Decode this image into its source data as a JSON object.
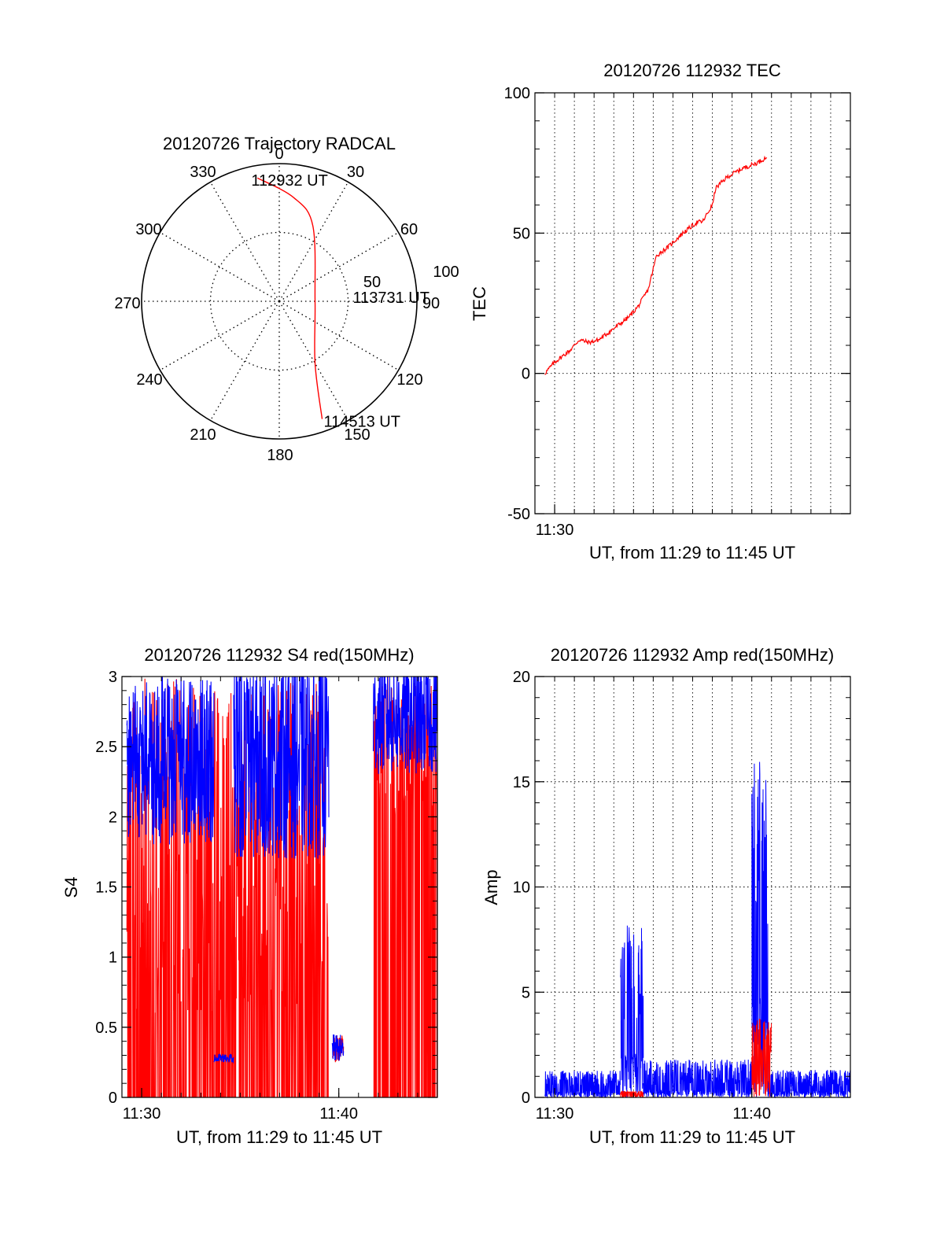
{
  "chart_data": [
    {
      "type": "polar",
      "title": "20120726 Trajectory RADCAL",
      "angle_labels": [
        "0",
        "30",
        "60",
        "90",
        "120",
        "150",
        "180",
        "210",
        "240",
        "270",
        "300",
        "330"
      ],
      "radius_labels": [
        "50",
        "100"
      ],
      "rlim": [
        0,
        100
      ],
      "grid": true,
      "series": [
        {
          "color": "#ff0000",
          "points": [
            {
              "az": 350,
              "r": 91
            },
            {
              "az": 8,
              "r": 76
            },
            {
              "az": 24,
              "r": 60
            },
            {
              "az": 90,
              "r": 26
            },
            {
              "az": 150,
              "r": 52
            },
            {
              "az": 160,
              "r": 91
            }
          ]
        }
      ],
      "annotations": [
        {
          "text": "112932 UT",
          "az": 350,
          "r": 91
        },
        {
          "text": "113731 UT",
          "az": 90,
          "r": 26
        },
        {
          "text": "114513 UT",
          "az": 160,
          "r": 91
        }
      ]
    },
    {
      "type": "line",
      "title": "20120726 112932 TEC",
      "xlabel": "UT, from 11:29 to 11:45 UT",
      "ylabel": "TEC",
      "xlim": [
        "11:29",
        "11:45"
      ],
      "x_ticks": [
        "11:30"
      ],
      "ylim": [
        -50,
        100
      ],
      "y_ticks": [
        "-50",
        "0",
        "50",
        "100"
      ],
      "grid": true,
      "series": [
        {
          "color": "#ff0000",
          "points": [
            [
              "11:29:30",
              0
            ],
            [
              "11:30:00",
              4
            ],
            [
              "11:30:45",
              8
            ],
            [
              "11:31:15",
              12
            ],
            [
              "11:31:45",
              11
            ],
            [
              "11:32:15",
              12
            ],
            [
              "11:33:00",
              16
            ],
            [
              "11:33:45",
              20
            ],
            [
              "11:34:15",
              24
            ],
            [
              "11:34:45",
              30
            ],
            [
              "11:35:10",
              42
            ],
            [
              "11:35:45",
              45
            ],
            [
              "11:36:30",
              50
            ],
            [
              "11:37:15",
              54
            ],
            [
              "11:37:30",
              54
            ],
            [
              "11:38:00",
              60
            ],
            [
              "11:38:10",
              66
            ],
            [
              "11:38:45",
              70
            ],
            [
              "11:39:30",
              73
            ],
            [
              "11:40:15",
              75
            ],
            [
              "11:40:45",
              77
            ]
          ]
        }
      ]
    },
    {
      "type": "line",
      "title": "20120726 112932 S4 red(150MHz)",
      "xlabel": "UT, from 11:29 to 11:45 UT",
      "ylabel": "S4",
      "xlim": [
        "11:29",
        "11:45"
      ],
      "x_ticks": [
        "11:30",
        "11:40"
      ],
      "ylim": [
        0,
        3
      ],
      "y_ticks": [
        "0",
        "0.5",
        "1",
        "1.5",
        "2",
        "2.5",
        "3"
      ],
      "grid": false,
      "series": [
        {
          "color": "#ff0000",
          "segments": [
            {
              "from": "11:29:15",
              "to": "11:39:30",
              "level": 1.8,
              "spread": 1.2,
              "drops_to_zero": true
            },
            {
              "from": "11:39:40",
              "to": "11:40:15",
              "level": 0.35,
              "spread": 0.1
            },
            {
              "from": "11:41:45",
              "to": "11:45:00",
              "level": 2.5,
              "spread": 0.5,
              "drops_to_zero": true
            }
          ]
        },
        {
          "color": "#0000ff",
          "segments": [
            {
              "from": "11:29:15",
              "to": "11:33:40",
              "level": 2.4,
              "spread": 0.6
            },
            {
              "from": "11:33:40",
              "to": "11:34:40",
              "level": 0.28,
              "spread": 0.03
            },
            {
              "from": "11:34:40",
              "to": "11:39:30",
              "level": 2.4,
              "spread": 0.7
            },
            {
              "from": "11:39:40",
              "to": "11:40:15",
              "level": 0.35,
              "spread": 0.1
            },
            {
              "from": "11:41:45",
              "to": "11:45:00",
              "level": 2.7,
              "spread": 0.4
            }
          ]
        }
      ]
    },
    {
      "type": "line",
      "title": "20120726 112932 Amp red(150MHz)",
      "xlabel": "UT, from 11:29 to 11:45 UT",
      "ylabel": "Amp",
      "xlim": [
        "11:29",
        "11:45"
      ],
      "x_ticks": [
        "11:30",
        "11:40"
      ],
      "ylim": [
        0,
        20
      ],
      "y_ticks": [
        "0",
        "5",
        "10",
        "15",
        "20"
      ],
      "grid": true,
      "series": [
        {
          "color": "#0000ff",
          "segments": [
            {
              "from": "11:29:30",
              "to": "11:33:20",
              "level": 0.5,
              "peak": 1.3
            },
            {
              "from": "11:33:20",
              "to": "11:34:30",
              "level": 3.5,
              "peak": 8.2
            },
            {
              "from": "11:34:30",
              "to": "11:40:00",
              "level": 0.6,
              "peak": 1.8
            },
            {
              "from": "11:40:00",
              "to": "11:40:50",
              "level": 8,
              "peak": 16.2
            },
            {
              "from": "11:40:50",
              "to": "11:45:00",
              "level": 0.5,
              "peak": 1.3
            }
          ]
        },
        {
          "color": "#ff0000",
          "segments": [
            {
              "from": "11:33:20",
              "to": "11:34:30",
              "level": 0.2,
              "peak": 0.3
            },
            {
              "from": "11:40:00",
              "to": "11:41:00",
              "level": 1.5,
              "peak": 3.8
            }
          ]
        }
      ]
    }
  ]
}
